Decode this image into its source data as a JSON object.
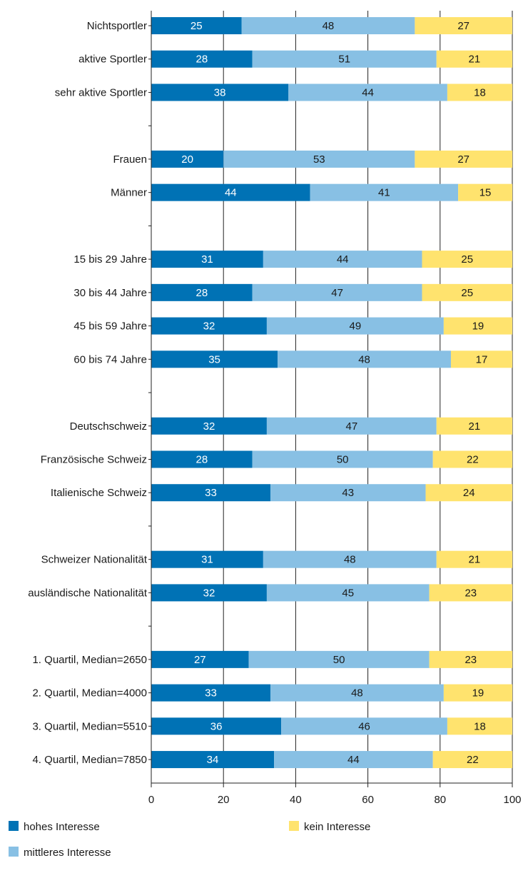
{
  "chart_data": {
    "type": "bar",
    "orientation": "horizontal",
    "stacked": true,
    "xlim": [
      0,
      100
    ],
    "x_ticks": [
      0,
      20,
      40,
      60,
      80,
      100
    ],
    "grid": true,
    "legend_position": "bottom",
    "categories": [
      "Nichtsportler",
      "aktive Sportler",
      "sehr aktive Sportler",
      "",
      "Frauen",
      "Männer",
      "",
      "15 bis 29 Jahre",
      "30 bis 44 Jahre",
      "45 bis 59 Jahre",
      "60 bis 74 Jahre",
      "",
      "Deutschschweiz",
      "Französische Schweiz",
      "Italienische Schweiz",
      "",
      "Schweizer Nationalität",
      "ausländische Nationalität",
      "",
      "1. Quartil, Median=2650",
      "2. Quartil, Median=4000",
      "3. Quartil, Median=5510",
      "4. Quartil, Median=7850"
    ],
    "series": [
      {
        "name": "hohes Interesse",
        "color": "#0072b5",
        "label_color": "#ffffff",
        "values": [
          25,
          28,
          38,
          null,
          20,
          44,
          null,
          31,
          28,
          32,
          35,
          null,
          32,
          28,
          33,
          null,
          31,
          32,
          null,
          27,
          33,
          36,
          34
        ]
      },
      {
        "name": "mittleres Interesse",
        "color": "#88c0e4",
        "label_color": "#1a1a1a",
        "values": [
          48,
          51,
          44,
          null,
          53,
          41,
          null,
          44,
          47,
          49,
          48,
          null,
          47,
          50,
          43,
          null,
          48,
          45,
          null,
          50,
          48,
          46,
          44
        ]
      },
      {
        "name": "kein Interesse",
        "color": "#ffe36e",
        "label_color": "#1a1a1a",
        "values": [
          27,
          21,
          18,
          null,
          27,
          15,
          null,
          25,
          25,
          19,
          17,
          null,
          21,
          22,
          24,
          null,
          21,
          23,
          null,
          23,
          19,
          18,
          22
        ]
      }
    ],
    "title": "",
    "xlabel": "",
    "ylabel": ""
  }
}
